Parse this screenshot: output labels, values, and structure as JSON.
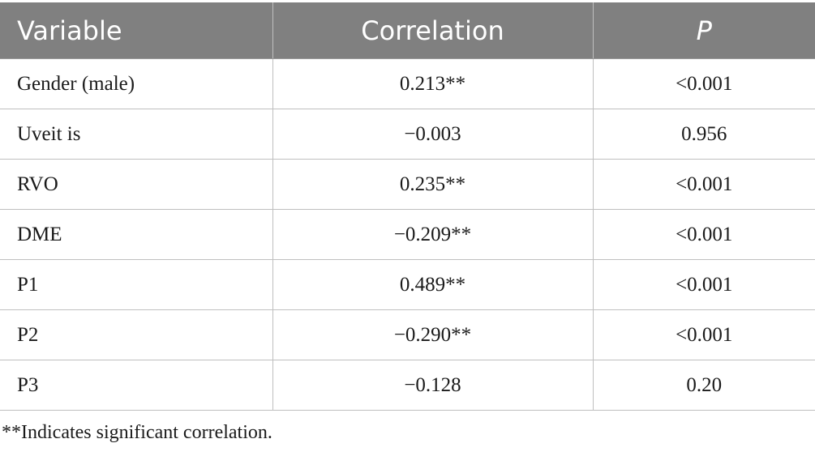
{
  "table": {
    "headers": [
      "Variable",
      "Correlation",
      "P"
    ],
    "rows": [
      {
        "variable": "Gender (male)",
        "correlation": "0.213**",
        "p": "<0.001"
      },
      {
        "variable": "Uveit is",
        "correlation": "−0.003",
        "p": "0.956"
      },
      {
        "variable": "RVO",
        "correlation": "0.235**",
        "p": "<0.001"
      },
      {
        "variable": "DME",
        "correlation": "−0.209**",
        "p": "<0.001"
      },
      {
        "variable": "P1",
        "correlation": "0.489**",
        "p": "<0.001"
      },
      {
        "variable": "P2",
        "correlation": "−0.290**",
        "p": "<0.001"
      },
      {
        "variable": "P3",
        "correlation": "−0.128",
        "p": "0.20"
      }
    ]
  },
  "footnote": "**Indicates significant correlation.",
  "colors": {
    "header_bg": "#808080",
    "header_text": "#ffffff",
    "grid": "#bfbfbf",
    "body_text": "#1a1a1a"
  }
}
